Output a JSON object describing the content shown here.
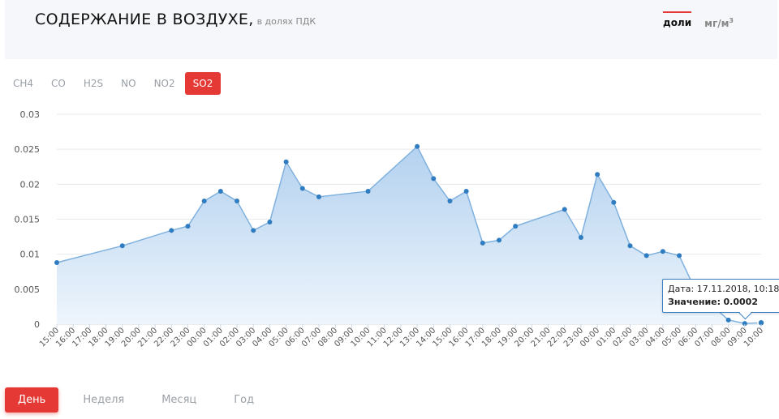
{
  "header": {
    "title": "СОДЕРЖАНИЕ В ВОЗДУХЕ,",
    "subtitle": "в долях ПДК",
    "units": [
      {
        "label": "доли",
        "sup": "",
        "active": true
      },
      {
        "label": "мг/м",
        "sup": "3",
        "active": false
      }
    ]
  },
  "gas_tabs": [
    {
      "label": "CH4",
      "active": false
    },
    {
      "label": "CO",
      "active": false
    },
    {
      "label": "H2S",
      "active": false
    },
    {
      "label": "NO",
      "active": false
    },
    {
      "label": "NO2",
      "active": false
    },
    {
      "label": "SO2",
      "active": true
    }
  ],
  "period_tabs": [
    {
      "label": "День",
      "active": true
    },
    {
      "label": "Неделя",
      "active": false
    },
    {
      "label": "Месяц",
      "active": false
    },
    {
      "label": "Год",
      "active": false
    }
  ],
  "tooltip": {
    "date_label": "Дата:",
    "date_value": "17.11.2018, 10:18",
    "value_label": "Значение:",
    "value_value": "0.0002"
  },
  "colors": {
    "accent": "#e53935",
    "line": "#7fb1de",
    "point": "#2f7cc0",
    "fill_top": "#b3d1ef",
    "fill_bottom": "#eef5fc"
  },
  "chart_data": {
    "type": "area",
    "x_ticks": [
      "15:00",
      "16:00",
      "17:00",
      "18:00",
      "19:00",
      "20:00",
      "21:00",
      "22:00",
      "23:00",
      "00:00",
      "01:00",
      "02:00",
      "03:00",
      "04:00",
      "05:00",
      "06:00",
      "07:00",
      "08:00",
      "09:00",
      "10:00",
      "11:00",
      "12:00",
      "13:00",
      "14:00",
      "15:00",
      "16:00",
      "17:00",
      "18:00",
      "19:00",
      "20:00",
      "21:00",
      "22:00",
      "23:00",
      "00:00",
      "01:00",
      "02:00",
      "03:00",
      "04:00",
      "05:00",
      "06:00",
      "07:00",
      "08:00",
      "09:00",
      "10:00"
    ],
    "y_ticks": [
      "0",
      "0.005",
      "0.01",
      "0.015",
      "0.02",
      "0.025",
      "0.03"
    ],
    "ylim": [
      0,
      0.03
    ],
    "points": [
      {
        "x": 0,
        "y": 0.0088
      },
      {
        "x": 4,
        "y": 0.0112
      },
      {
        "x": 7,
        "y": 0.0134
      },
      {
        "x": 8,
        "y": 0.014
      },
      {
        "x": 9,
        "y": 0.0176
      },
      {
        "x": 10,
        "y": 0.019
      },
      {
        "x": 11,
        "y": 0.0176
      },
      {
        "x": 12,
        "y": 0.0134
      },
      {
        "x": 13,
        "y": 0.0146
      },
      {
        "x": 14,
        "y": 0.0232
      },
      {
        "x": 15,
        "y": 0.0194
      },
      {
        "x": 16,
        "y": 0.0182
      },
      {
        "x": 19,
        "y": 0.019
      },
      {
        "x": 22,
        "y": 0.0254
      },
      {
        "x": 23,
        "y": 0.0208
      },
      {
        "x": 24,
        "y": 0.0176
      },
      {
        "x": 25,
        "y": 0.019
      },
      {
        "x": 26,
        "y": 0.0116
      },
      {
        "x": 27,
        "y": 0.012
      },
      {
        "x": 28,
        "y": 0.014
      },
      {
        "x": 31,
        "y": 0.0164
      },
      {
        "x": 32,
        "y": 0.0124
      },
      {
        "x": 33,
        "y": 0.0214
      },
      {
        "x": 34,
        "y": 0.0174
      },
      {
        "x": 35,
        "y": 0.0112
      },
      {
        "x": 36,
        "y": 0.0098
      },
      {
        "x": 37,
        "y": 0.0104
      },
      {
        "x": 38,
        "y": 0.0098
      },
      {
        "x": 39,
        "y": 0.0048
      },
      {
        "x": 41,
        "y": 0.0006
      },
      {
        "x": 42,
        "y": 0.0001
      },
      {
        "x": 43,
        "y": 0.0002
      }
    ]
  }
}
